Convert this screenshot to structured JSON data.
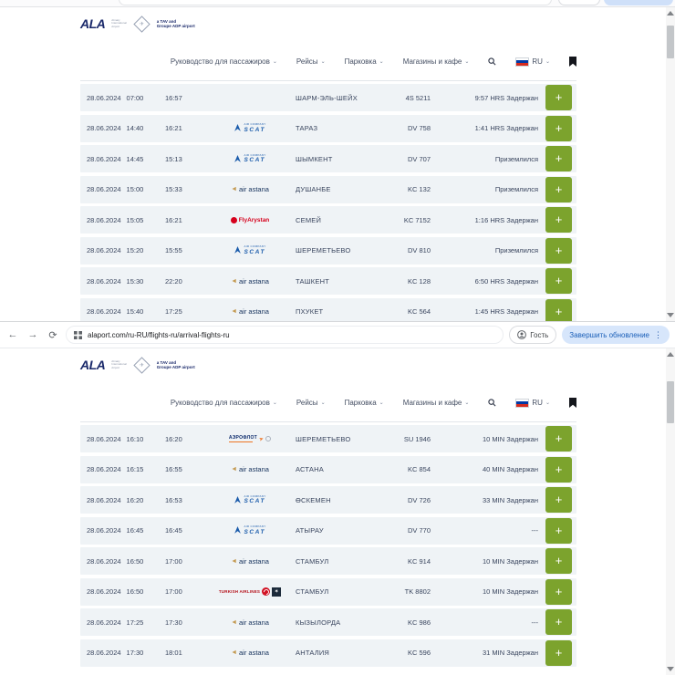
{
  "browser": {
    "url": "alaport.com/ru-RU/flights-ru/arrival-flights-ru",
    "guest_label": "Гость",
    "update_button_label": "Завершить обновление"
  },
  "header": {
    "logo": {
      "abbr": "ALA",
      "sub1": "Almaty",
      "sub2": "International",
      "sub3": "Airport",
      "tag1": "a TAV and",
      "tag2": "Groupe ADP airport"
    },
    "nav": [
      "Руководство для пассажиров",
      "Рейсы",
      "Парковка",
      "Магазины и кафе"
    ],
    "lang": "RU"
  },
  "airlines": {
    "scat": {
      "top": "AIR COMPANY",
      "name": "SCAT"
    },
    "astana": {
      "name": "air astana"
    },
    "flyarystan": {
      "name": "FlyArystan"
    },
    "aeroflot": {
      "name": "АЭРОФЛОТ"
    },
    "turkish": {
      "name": "TURKISH AIRLINES"
    }
  },
  "flights": {
    "expand_label": "+",
    "top_table": [
      {
        "date": "28.06.2024",
        "sched": "07:00",
        "est": "16:57",
        "airline": "",
        "city": "ШАРМ-ЭЛЬ-ШЕЙХ",
        "flight": "4S 5211",
        "status": "9:57 HRS Задержан"
      },
      {
        "date": "28.06.2024",
        "sched": "14:40",
        "est": "16:21",
        "airline": "scat",
        "city": "ТАРАЗ",
        "flight": "DV 758",
        "status": "1:41 HRS Задержан"
      },
      {
        "date": "28.06.2024",
        "sched": "14:45",
        "est": "15:13",
        "airline": "scat",
        "city": "ШЫМКЕНТ",
        "flight": "DV 707",
        "status": "Приземлился"
      },
      {
        "date": "28.06.2024",
        "sched": "15:00",
        "est": "15:33",
        "airline": "astana",
        "city": "ДУШАНБЕ",
        "flight": "KC 132",
        "status": "Приземлился"
      },
      {
        "date": "28.06.2024",
        "sched": "15:05",
        "est": "16:21",
        "airline": "flyarystan",
        "city": "СЕМЕЙ",
        "flight": "KC 7152",
        "status": "1:16 HRS Задержан"
      },
      {
        "date": "28.06.2024",
        "sched": "15:20",
        "est": "15:55",
        "airline": "scat",
        "city": "ШЕРЕМЕТЬЕВО",
        "flight": "DV 810",
        "status": "Приземлился"
      },
      {
        "date": "28.06.2024",
        "sched": "15:30",
        "est": "22:20",
        "airline": "astana",
        "city": "ТАШКЕНТ",
        "flight": "KC 128",
        "status": "6:50 HRS Задержан"
      },
      {
        "date": "28.06.2024",
        "sched": "15:40",
        "est": "17:25",
        "airline": "astana",
        "city": "ПХУКЕТ",
        "flight": "KC 564",
        "status": "1:45 HRS Задержан"
      }
    ],
    "bottom_table": [
      {
        "date": "28.06.2024",
        "sched": "16:10",
        "est": "16:20",
        "airline": "aeroflot",
        "city": "ШЕРЕМЕТЬЕВО",
        "flight": "SU 1946",
        "status": "10 MIN Задержан"
      },
      {
        "date": "28.06.2024",
        "sched": "16:15",
        "est": "16:55",
        "airline": "astana",
        "city": "АСТАНА",
        "flight": "KC 854",
        "status": "40 MIN Задержан"
      },
      {
        "date": "28.06.2024",
        "sched": "16:20",
        "est": "16:53",
        "airline": "scat",
        "city": "ӨСКЕМЕН",
        "flight": "DV 726",
        "status": "33 MIN Задержан"
      },
      {
        "date": "28.06.2024",
        "sched": "16:45",
        "est": "16:45",
        "airline": "scat",
        "city": "АТЫРАУ",
        "flight": "DV 770",
        "status": "---"
      },
      {
        "date": "28.06.2024",
        "sched": "16:50",
        "est": "17:00",
        "airline": "astana",
        "city": "СТАМБУЛ",
        "flight": "KC 914",
        "status": "10 MIN Задержан"
      },
      {
        "date": "28.06.2024",
        "sched": "16:50",
        "est": "17:00",
        "airline": "turkish",
        "city": "СТАМБУЛ",
        "flight": "TK 8802",
        "status": "10 MIN Задержан"
      },
      {
        "date": "28.06.2024",
        "sched": "17:25",
        "est": "17:30",
        "airline": "astana",
        "city": "КЫЗЫЛОРДА",
        "flight": "KC 986",
        "status": "---"
      },
      {
        "date": "28.06.2024",
        "sched": "17:30",
        "est": "18:01",
        "airline": "astana",
        "city": "АНТАЛИЯ",
        "flight": "KC 596",
        "status": "31 MIN Задержан"
      }
    ]
  },
  "colors": {
    "accent_green": "#7ca32d",
    "brand_navy": "#1b2a6b",
    "row_background": "#eff3f6",
    "scat_blue": "#1a5bab",
    "flyarystan_red": "#d6001c",
    "turkish_red": "#b5121b",
    "aeroflot_navy": "#0b2a6b",
    "update_button_blue": "#d7e6fb"
  }
}
